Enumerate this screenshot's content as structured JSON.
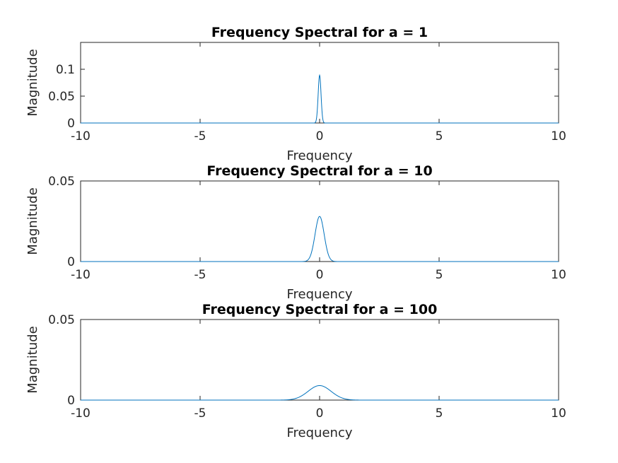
{
  "chart_data": [
    {
      "type": "line",
      "title": "Frequency Spectral for a = 1",
      "xlabel": "Frequency",
      "ylabel": "Magnitude",
      "xlim": [
        -10,
        10
      ],
      "ylim": [
        0,
        0.15
      ],
      "xticks": [
        "-10",
        "-5",
        "0",
        "5",
        "10"
      ],
      "yticks": [
        {
          "value": 0,
          "label": "0"
        },
        {
          "value": 0.05,
          "label": "0.05"
        },
        {
          "value": 0.1,
          "label": "0.1"
        }
      ],
      "series": [
        {
          "color": "#0072BD",
          "peak": 0.089,
          "width": 0.06,
          "x": [
            -10,
            -0.2,
            -0.15,
            -0.1,
            -0.06,
            -0.03,
            0,
            0.03,
            0.06,
            0.1,
            0.15,
            0.2,
            10
          ],
          "y": [
            0,
            0.0003,
            0.0039,
            0.0223,
            0.0548,
            0.0786,
            0.089,
            0.0786,
            0.0548,
            0.0223,
            0.0039,
            0.0003,
            0
          ]
        }
      ]
    },
    {
      "type": "line",
      "title": "Frequency Spectral for a = 10",
      "xlabel": "Frequency",
      "ylabel": "Magnitude",
      "xlim": [
        -10,
        10
      ],
      "ylim": [
        0,
        0.05
      ],
      "xticks": [
        "-10",
        "-5",
        "0",
        "5",
        "10"
      ],
      "yticks": [
        {
          "value": 0,
          "label": "0"
        },
        {
          "value": 0.05,
          "label": "0.05"
        }
      ],
      "series": [
        {
          "color": "#0072BD",
          "peak": 0.028,
          "width": 0.19,
          "x": [
            -10,
            -0.6,
            -0.4,
            -0.3,
            -0.2,
            -0.1,
            0,
            0.1,
            0.2,
            0.3,
            0.4,
            0.6,
            10
          ],
          "y": [
            0,
            0.0002,
            0.003,
            0.0081,
            0.0161,
            0.0243,
            0.028,
            0.0243,
            0.0161,
            0.0081,
            0.003,
            0.0002,
            0
          ]
        }
      ]
    },
    {
      "type": "line",
      "title": "Frequency Spectral for a = 100",
      "xlabel": "Frequency",
      "ylabel": "Magnitude",
      "xlim": [
        -10,
        10
      ],
      "ylim": [
        0,
        0.05
      ],
      "xticks": [
        "-10",
        "-5",
        "0",
        "5",
        "10"
      ],
      "yticks": [
        {
          "value": 0,
          "label": "0"
        },
        {
          "value": 0.05,
          "label": "0.05"
        }
      ],
      "series": [
        {
          "color": "#0072BD",
          "peak": 0.009,
          "width": 0.48,
          "x": [
            -10,
            -1.4,
            -1,
            -0.7,
            -0.4,
            -0.2,
            0,
            0.2,
            0.4,
            0.7,
            1,
            1.4,
            10
          ],
          "y": [
            0,
            0.0012,
            0.0033,
            0.0058,
            0.0082,
            0.0087,
            0.009,
            0.0087,
            0.0082,
            0.0058,
            0.0033,
            0.0012,
            0
          ]
        }
      ]
    }
  ]
}
